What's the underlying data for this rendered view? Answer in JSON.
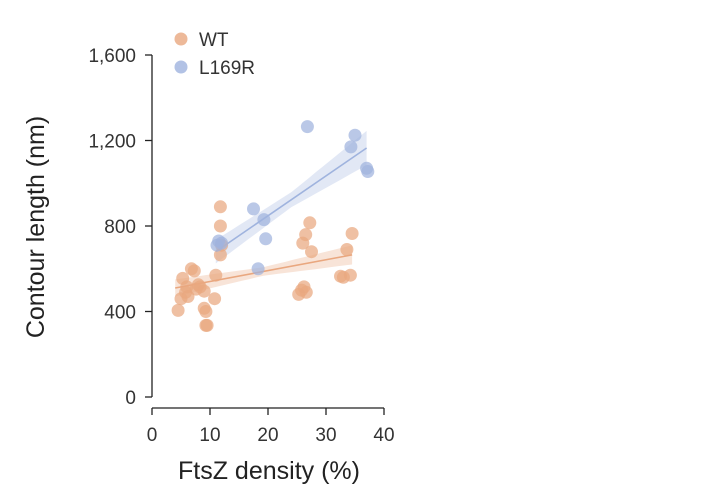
{
  "chart_data": {
    "type": "scatter",
    "xlabel": "FtsZ density (%)",
    "ylabel": "Contour length (nm)",
    "xlim": [
      0,
      40
    ],
    "ylim": [
      0,
      1600
    ],
    "xticks": [
      0,
      10,
      20,
      30,
      40
    ],
    "xtick_labels": [
      "0",
      "10",
      "20",
      "30",
      "40"
    ],
    "yticks": [
      0,
      400,
      800,
      1200,
      1600
    ],
    "ytick_labels": [
      "0",
      "400",
      "800",
      "1,200",
      "1,600"
    ],
    "grid": false,
    "legend_position": "top-left",
    "series": [
      {
        "name": "WT",
        "color": "#E9A77F",
        "fit": {
          "x_range": [
            4,
            34.5
          ],
          "y_start": 510,
          "y_end": 665
        },
        "points": [
          [
            4.5,
            405
          ],
          [
            5,
            460
          ],
          [
            5.3,
            555
          ],
          [
            5.8,
            490
          ],
          [
            6,
            515
          ],
          [
            6.2,
            470
          ],
          [
            6.8,
            600
          ],
          [
            7.3,
            590
          ],
          [
            7.6,
            505
          ],
          [
            8,
            525
          ],
          [
            8.3,
            515
          ],
          [
            9,
            495
          ],
          [
            9,
            415
          ],
          [
            9.3,
            400
          ],
          [
            9.3,
            335
          ],
          [
            9.5,
            335
          ],
          [
            10.8,
            460
          ],
          [
            11,
            570
          ],
          [
            11.8,
            890
          ],
          [
            11.8,
            800
          ],
          [
            11.8,
            665
          ],
          [
            12,
            710
          ],
          [
            25.3,
            480
          ],
          [
            25.8,
            500
          ],
          [
            26,
            720
          ],
          [
            26.2,
            515
          ],
          [
            26.5,
            760
          ],
          [
            26.6,
            490
          ],
          [
            27.2,
            815
          ],
          [
            27.5,
            680
          ],
          [
            32.5,
            565
          ],
          [
            33,
            560
          ],
          [
            33.6,
            690
          ],
          [
            34.2,
            570
          ],
          [
            34.5,
            765
          ]
        ]
      },
      {
        "name": "L169R",
        "color": "#9FB3DE",
        "fit": {
          "x_range": [
            11,
            37
          ],
          "y_start": 680,
          "y_end": 1165
        },
        "points": [
          [
            11.2,
            710
          ],
          [
            11.5,
            730
          ],
          [
            12,
            720
          ],
          [
            17.5,
            880
          ],
          [
            18.3,
            600
          ],
          [
            19.3,
            830
          ],
          [
            19.6,
            740
          ],
          [
            26.8,
            1265
          ],
          [
            34.3,
            1170
          ],
          [
            35,
            1225
          ],
          [
            37,
            1070
          ],
          [
            37.2,
            1055
          ]
        ]
      }
    ]
  }
}
